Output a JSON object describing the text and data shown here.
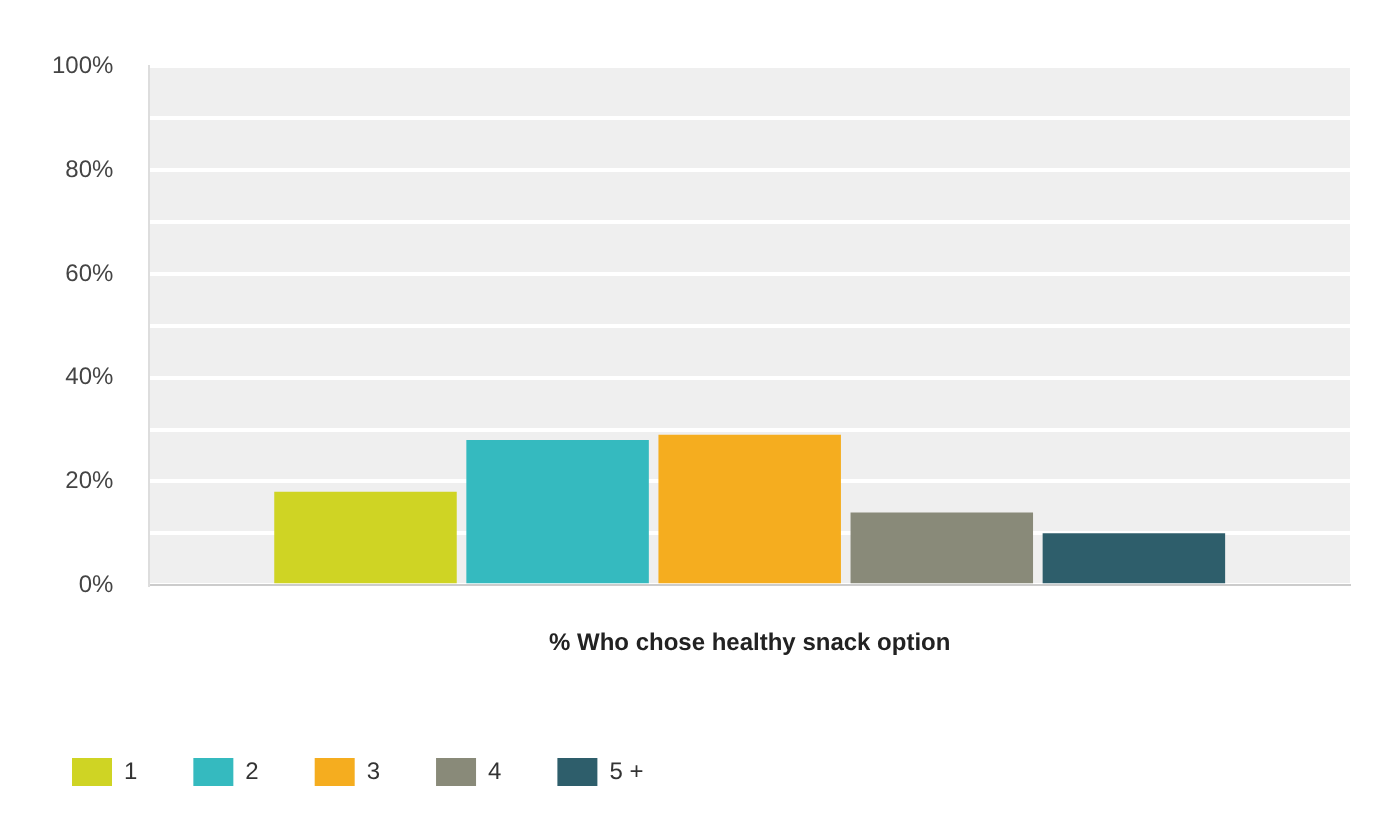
{
  "chart_data": {
    "type": "bar",
    "categories": [
      "% Who chose healthy snack option"
    ],
    "series": [
      {
        "name": "1",
        "color": "#cfd424",
        "values": [
          18
        ]
      },
      {
        "name": "2",
        "color": "#35babf",
        "values": [
          28
        ]
      },
      {
        "name": "3",
        "color": "#f5ad1f",
        "values": [
          29
        ]
      },
      {
        "name": "4",
        "color": "#898a79",
        "values": [
          14
        ]
      },
      {
        "name": "5 +",
        "color": "#2e5e6b",
        "values": [
          10
        ]
      }
    ],
    "ylim": [
      0,
      100
    ],
    "yticks": [
      {
        "value": 0,
        "label": "0%"
      },
      {
        "value": 10,
        "label": null
      },
      {
        "value": 20,
        "label": "20%"
      },
      {
        "value": 30,
        "label": null
      },
      {
        "value": 40,
        "label": "40%"
      },
      {
        "value": 50,
        "label": null
      },
      {
        "value": 60,
        "label": "60%"
      },
      {
        "value": 70,
        "label": null
      },
      {
        "value": 80,
        "label": "80%"
      },
      {
        "value": 90,
        "label": null
      },
      {
        "value": 100,
        "label": "100%"
      }
    ],
    "grid": true,
    "legend": "bottom left"
  }
}
